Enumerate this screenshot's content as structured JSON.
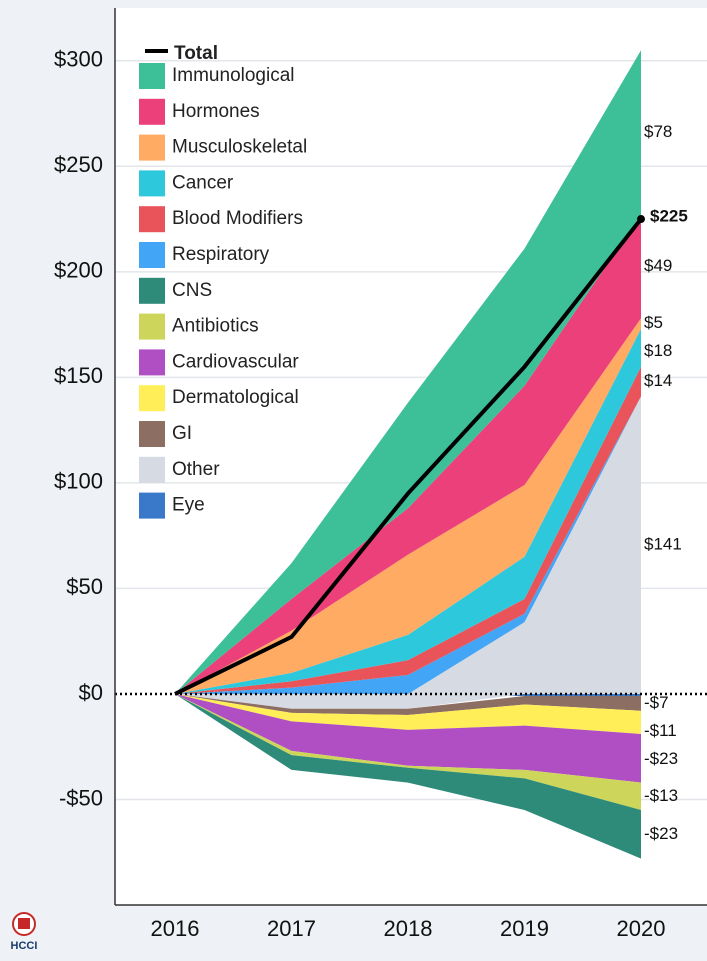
{
  "chart_data": {
    "type": "stacked_area",
    "categories": [
      "2016",
      "2017",
      "2018",
      "2019",
      "2020"
    ],
    "ylim": [
      -100,
      325
    ],
    "yticks": [
      {
        "value": 300,
        "label": "$300"
      },
      {
        "value": 250,
        "label": "$250"
      },
      {
        "value": 200,
        "label": "$200"
      },
      {
        "value": 150,
        "label": "$150"
      },
      {
        "value": 100,
        "label": "$100"
      },
      {
        "value": 50,
        "label": "$50"
      },
      {
        "value": 0,
        "label": "$0"
      },
      {
        "value": -50,
        "label": "-$50"
      }
    ],
    "grid": true,
    "legend": "upper left",
    "total": {
      "name": "Total",
      "color": "#000000",
      "values": [
        0,
        27,
        95,
        155,
        225
      ],
      "value_labels": [
        null,
        null,
        null,
        null,
        "$225"
      ]
    },
    "series": [
      {
        "name": "Immunological",
        "color": "#3dbf98",
        "values": [
          0,
          17,
          50,
          65,
          78
        ],
        "value_labels": [
          null,
          null,
          null,
          null,
          "$78"
        ]
      },
      {
        "name": "Hormones",
        "color": "#ec407a",
        "values": [
          0,
          15,
          22,
          47,
          49
        ],
        "value_labels": [
          null,
          null,
          null,
          null,
          "$49"
        ]
      },
      {
        "name": "Musculoskeletal",
        "color": "#ffab63",
        "values": [
          0,
          20,
          38,
          34,
          5
        ],
        "value_labels": [
          null,
          null,
          null,
          null,
          "$5"
        ]
      },
      {
        "name": "Cancer",
        "color": "#2ec8dc",
        "values": [
          0,
          4,
          12,
          20,
          18
        ],
        "value_labels": [
          null,
          null,
          null,
          null,
          "$18"
        ]
      },
      {
        "name": "Blood Modifiers",
        "color": "#e8545a",
        "values": [
          0,
          3,
          7,
          7,
          14
        ],
        "value_labels": [
          null,
          null,
          null,
          null,
          "$14"
        ]
      },
      {
        "name": "Respiratory",
        "color": "#42a5f5",
        "values": [
          0,
          3,
          9,
          4,
          0
        ]
      },
      {
        "name": "CNS",
        "color": "#2e8b7a",
        "values": [
          0,
          -7,
          -7,
          -15,
          -23
        ],
        "value_labels": [
          null,
          null,
          null,
          null,
          "-$23"
        ]
      },
      {
        "name": "Antibiotics",
        "color": "#cdd65a",
        "values": [
          0,
          -2,
          -1,
          -4,
          -13
        ],
        "value_labels": [
          null,
          null,
          null,
          null,
          "-$13"
        ]
      },
      {
        "name": "Cardiovascular",
        "color": "#b04fc4",
        "values": [
          0,
          -14,
          -17,
          -21,
          -23
        ],
        "value_labels": [
          null,
          null,
          null,
          null,
          "-$23"
        ]
      },
      {
        "name": "Dermatological",
        "color": "#ffee58",
        "values": [
          0,
          -4,
          -7,
          -10,
          -11
        ],
        "value_labels": [
          null,
          null,
          null,
          null,
          "-$11"
        ]
      },
      {
        "name": "GI",
        "color": "#8d6e63",
        "values": [
          0,
          -2,
          -3,
          -4,
          -7
        ],
        "value_labels": [
          null,
          null,
          null,
          null,
          "-$7"
        ]
      },
      {
        "name": "Other",
        "color": "#d6dbe3",
        "values": [
          0,
          -7,
          -7,
          34,
          141
        ],
        "value_labels": [
          null,
          null,
          null,
          null,
          "$141"
        ]
      },
      {
        "name": "Eye",
        "color": "#3a78c9",
        "values": [
          0,
          0,
          0,
          -1,
          -1
        ]
      }
    ]
  },
  "logo": "HCCI"
}
